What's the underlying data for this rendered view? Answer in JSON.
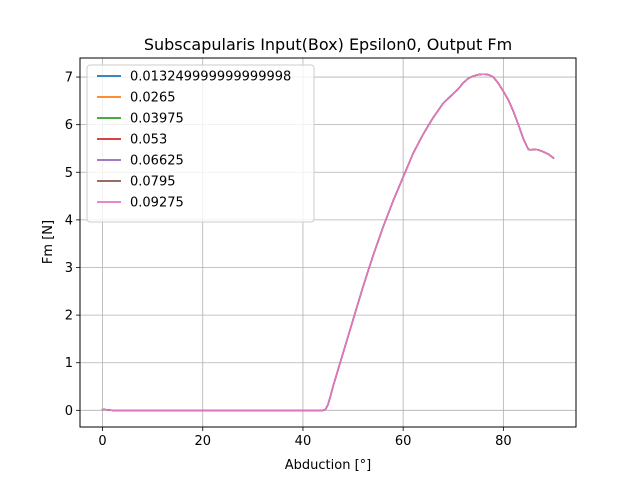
{
  "chart_data": {
    "type": "line",
    "title": "Subscapularis Input(Box) Epsilon0, Output Fm",
    "xlabel": "Abduction [°]",
    "ylabel": "Fm [N]",
    "xlim": [
      -4.5,
      94.5
    ],
    "ylim": [
      -0.35,
      7.4
    ],
    "xticks": [
      0,
      20,
      40,
      60,
      80
    ],
    "yticks": [
      0,
      1,
      2,
      3,
      4,
      5,
      6,
      7
    ],
    "grid": true,
    "legend_position": "upper-left",
    "colors": [
      "#1f77b4",
      "#ff7f0e",
      "#2ca02c",
      "#d62728",
      "#9467bd",
      "#8c564b",
      "#e377c2"
    ],
    "x": [
      0,
      2,
      4,
      6,
      8,
      10,
      12,
      14,
      16,
      18,
      20,
      22,
      24,
      26,
      28,
      30,
      32,
      34,
      36,
      38,
      40,
      42,
      44,
      44.5,
      45,
      45.5,
      46,
      47,
      48,
      49,
      50,
      52,
      54,
      56,
      58,
      60,
      62,
      64,
      66,
      68,
      70,
      71,
      72,
      73,
      74,
      75,
      76,
      77,
      78,
      79,
      80,
      81,
      82,
      83,
      84,
      85,
      85.5,
      86,
      87,
      88,
      89,
      90
    ],
    "series": [
      {
        "name": "0.013249999999999998",
        "values": [
          0.02,
          0,
          0,
          0,
          0,
          0,
          0,
          0,
          0,
          0,
          0,
          0,
          0,
          0,
          0,
          0,
          0,
          0,
          0,
          0,
          0,
          0,
          0,
          0.02,
          0.12,
          0.3,
          0.5,
          0.85,
          1.2,
          1.55,
          1.9,
          2.6,
          3.25,
          3.85,
          4.4,
          4.9,
          5.4,
          5.8,
          6.15,
          6.45,
          6.65,
          6.75,
          6.88,
          6.97,
          7.02,
          7.05,
          7.06,
          7.05,
          7.0,
          6.87,
          6.7,
          6.52,
          6.28,
          6.0,
          5.7,
          5.48,
          5.47,
          5.48,
          5.47,
          5.43,
          5.38,
          5.3
        ]
      },
      {
        "name": "0.0265",
        "values": [
          0.02,
          0,
          0,
          0,
          0,
          0,
          0,
          0,
          0,
          0,
          0,
          0,
          0,
          0,
          0,
          0,
          0,
          0,
          0,
          0,
          0,
          0,
          0,
          0.02,
          0.12,
          0.3,
          0.5,
          0.85,
          1.2,
          1.55,
          1.9,
          2.6,
          3.25,
          3.85,
          4.4,
          4.9,
          5.4,
          5.8,
          6.15,
          6.45,
          6.65,
          6.75,
          6.88,
          6.97,
          7.02,
          7.05,
          7.06,
          7.05,
          7.0,
          6.87,
          6.7,
          6.52,
          6.28,
          6.0,
          5.7,
          5.48,
          5.47,
          5.48,
          5.47,
          5.43,
          5.38,
          5.3
        ]
      },
      {
        "name": "0.03975",
        "values": [
          0.02,
          0,
          0,
          0,
          0,
          0,
          0,
          0,
          0,
          0,
          0,
          0,
          0,
          0,
          0,
          0,
          0,
          0,
          0,
          0,
          0,
          0,
          0,
          0.02,
          0.12,
          0.3,
          0.5,
          0.85,
          1.2,
          1.55,
          1.9,
          2.6,
          3.25,
          3.85,
          4.4,
          4.9,
          5.4,
          5.8,
          6.15,
          6.45,
          6.65,
          6.75,
          6.88,
          6.97,
          7.02,
          7.05,
          7.06,
          7.05,
          7.0,
          6.87,
          6.7,
          6.52,
          6.28,
          6.0,
          5.7,
          5.48,
          5.47,
          5.48,
          5.47,
          5.43,
          5.38,
          5.3
        ]
      },
      {
        "name": "0.053",
        "values": [
          0.02,
          0,
          0,
          0,
          0,
          0,
          0,
          0,
          0,
          0,
          0,
          0,
          0,
          0,
          0,
          0,
          0,
          0,
          0,
          0,
          0,
          0,
          0,
          0.02,
          0.12,
          0.3,
          0.5,
          0.85,
          1.2,
          1.55,
          1.9,
          2.6,
          3.25,
          3.85,
          4.4,
          4.9,
          5.4,
          5.8,
          6.15,
          6.45,
          6.65,
          6.75,
          6.88,
          6.97,
          7.02,
          7.05,
          7.06,
          7.05,
          7.0,
          6.87,
          6.7,
          6.52,
          6.28,
          6.0,
          5.7,
          5.48,
          5.47,
          5.48,
          5.47,
          5.43,
          5.38,
          5.3
        ]
      },
      {
        "name": "0.06625",
        "values": [
          0.02,
          0,
          0,
          0,
          0,
          0,
          0,
          0,
          0,
          0,
          0,
          0,
          0,
          0,
          0,
          0,
          0,
          0,
          0,
          0,
          0,
          0,
          0,
          0.02,
          0.12,
          0.3,
          0.5,
          0.85,
          1.2,
          1.55,
          1.9,
          2.6,
          3.25,
          3.85,
          4.4,
          4.9,
          5.4,
          5.8,
          6.15,
          6.45,
          6.65,
          6.75,
          6.88,
          6.97,
          7.02,
          7.05,
          7.06,
          7.05,
          7.0,
          6.87,
          6.7,
          6.52,
          6.28,
          6.0,
          5.7,
          5.48,
          5.47,
          5.48,
          5.47,
          5.43,
          5.38,
          5.3
        ]
      },
      {
        "name": "0.0795",
        "values": [
          0.02,
          0,
          0,
          0,
          0,
          0,
          0,
          0,
          0,
          0,
          0,
          0,
          0,
          0,
          0,
          0,
          0,
          0,
          0,
          0,
          0,
          0,
          0,
          0.02,
          0.12,
          0.3,
          0.5,
          0.85,
          1.2,
          1.55,
          1.9,
          2.6,
          3.25,
          3.85,
          4.4,
          4.9,
          5.4,
          5.8,
          6.15,
          6.45,
          6.65,
          6.75,
          6.88,
          6.97,
          7.02,
          7.05,
          7.06,
          7.05,
          7.0,
          6.87,
          6.7,
          6.52,
          6.28,
          6.0,
          5.7,
          5.48,
          5.47,
          5.48,
          5.47,
          5.43,
          5.38,
          5.3
        ]
      },
      {
        "name": "0.09275",
        "values": [
          0.02,
          0,
          0,
          0,
          0,
          0,
          0,
          0,
          0,
          0,
          0,
          0,
          0,
          0,
          0,
          0,
          0,
          0,
          0,
          0,
          0,
          0,
          0,
          0.02,
          0.12,
          0.3,
          0.5,
          0.85,
          1.2,
          1.55,
          1.9,
          2.6,
          3.25,
          3.85,
          4.4,
          4.9,
          5.4,
          5.8,
          6.15,
          6.45,
          6.65,
          6.75,
          6.88,
          6.97,
          7.02,
          7.05,
          7.06,
          7.05,
          7.0,
          6.87,
          6.7,
          6.52,
          6.28,
          6.0,
          5.7,
          5.48,
          5.47,
          5.48,
          5.47,
          5.43,
          5.38,
          5.3
        ]
      }
    ]
  }
}
